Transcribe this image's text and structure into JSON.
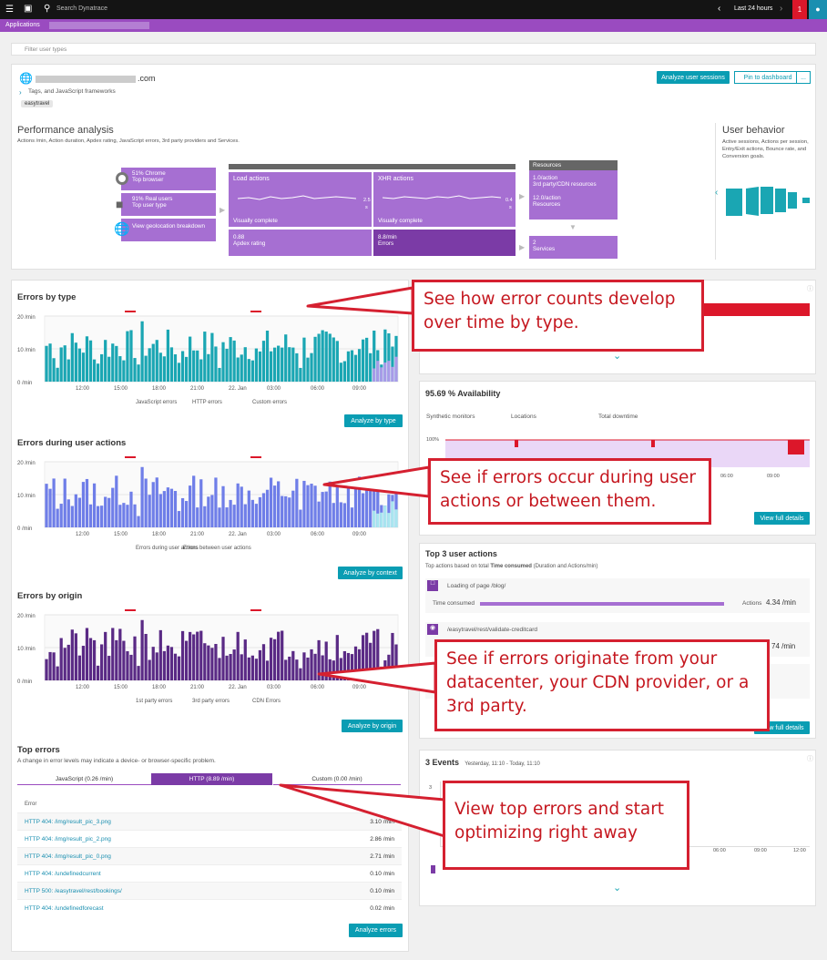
{
  "topbar": {
    "search_placeholder": "Search Dynatrace",
    "timeframe": "Last 24 hours",
    "alert_count": "1"
  },
  "nav": {
    "breadcrumb_root": "Applications"
  },
  "filter": {
    "placeholder": "Filter user types"
  },
  "app": {
    "name_suffix": ".com",
    "tags_label": "Tags, and JavaScript frameworks",
    "tag": "easytravel",
    "analyze_sessions": "Analyze user sessions",
    "pin": "Pin to dashboard",
    "more": "..."
  },
  "perf": {
    "title": "Performance analysis",
    "subtitle": "Actions /min, Action duration, Apdex rating, JavaScript errors, 3rd party providers and Services.",
    "browser_pct": "51% Chrome",
    "browser_label": "Top browser",
    "users_pct": "91% Real users",
    "users_label": "Top user type",
    "geo": "View geolocation breakdown",
    "load": "Load actions",
    "xhr": "XHR actions",
    "visually_complete": "Visually complete",
    "load_val": "2.5",
    "load_unit": "s",
    "xhr_val": "0.4",
    "xhr_unit": "s",
    "apdex_val": "0.88",
    "apdex_label": "Apdex rating",
    "errors_val": "8.8/min",
    "errors_label": "Errors",
    "resources_title": "Resources",
    "res1_val": "1.0/action",
    "res1_label": "3rd party/CDN resources",
    "res2_val": "12.0/action",
    "res2_label": "Resources",
    "services_val": "2",
    "services_label": "Services"
  },
  "behavior": {
    "title": "User behavior",
    "subtitle": "Active sessions, Actions per session, Entry/Exit actions, Bounce rate, and Conversion goals."
  },
  "errors_type": {
    "title": "Errors by type",
    "y": [
      "20 /min",
      "10 /min",
      "0 /min"
    ],
    "legend": [
      "JavaScript errors",
      "HTTP errors",
      "Custom errors"
    ],
    "button": "Analyze by type"
  },
  "errors_user": {
    "title": "Errors during user actions",
    "y": [
      "20 /min",
      "10 /min",
      "0 /min"
    ],
    "legend": [
      "Errors during user actions",
      "Errors between user actions"
    ],
    "button": "Analyze by context"
  },
  "errors_origin": {
    "title": "Errors by origin",
    "y": [
      "20 /min",
      "10 /min",
      "0 /min"
    ],
    "legend": [
      "1st party errors",
      "3rd party errors",
      "CDN Errors"
    ],
    "button": "Analyze by origin"
  },
  "x_ticks": [
    "12:00",
    "15:00",
    "18:00",
    "21:00",
    "22. Jan",
    "03:00",
    "06:00",
    "09:00"
  ],
  "top_errors": {
    "title": "Top errors",
    "subtitle": "A change in error levels may indicate a device- or browser-specific problem.",
    "tabs": [
      "JavaScript (0.26 /min)",
      "HTTP (8.89 /min)",
      "Custom (0.00 /min)"
    ],
    "col": "Error",
    "rows": [
      {
        "name": "HTTP 404: /img/result_pic_3.png",
        "rate": "3.10 /min"
      },
      {
        "name": "HTTP 404: /img/result_pic_2.png",
        "rate": "2.86 /min"
      },
      {
        "name": "HTTP 404: /img/result_pic_0.png",
        "rate": "2.71 /min"
      },
      {
        "name": "HTTP 404: /undefinedcurrent",
        "rate": "0.10 /min"
      },
      {
        "name": "HTTP 500: /easytravel/rest/bookings/",
        "rate": "0.10 /min"
      },
      {
        "name": "HTTP 404: /undefinedforecast",
        "rate": "0.02 /min"
      }
    ],
    "button": "Analyze errors"
  },
  "availability": {
    "title": "95.69 % Availability",
    "synthetic": "Synthetic monitors",
    "locations": "Locations",
    "downtime": "Total downtime",
    "y100": "100%",
    "ticks": [
      "06:00",
      "09:00"
    ],
    "button": "View full details"
  },
  "top_actions": {
    "title": "Top 3 user actions",
    "subtitle_pre": "Top actions based on total ",
    "subtitle_bold": "Time consumed",
    "subtitle_post": " (Duration and Actions/min)",
    "a1": "Loading of page /blog/",
    "tc": "Time consumed",
    "actions_label": "Actions",
    "a1_rate": "4.34 /min",
    "a2": "/easytravel/rest/validate-creditcard",
    "a2_rate": "74 /min",
    "button": "View full details"
  },
  "events": {
    "title": "3 Events",
    "range": "Yesterday, 11:10 - Today, 11:10",
    "y": [
      "3",
      "2",
      "1"
    ],
    "ticks": [
      "06:00",
      "09:00",
      "12:00"
    ]
  },
  "callouts": {
    "c1": "See how error counts develop over time by type.",
    "c2": "See if errors occur during user actions or between them.",
    "c3": "See if errors originate from your datacenter, your CDN provider, or a 3rd party.",
    "c4": "View top errors and start optimizing right away"
  },
  "colors": {
    "accent": "#9a4bc0",
    "teal": "#1aa6b3",
    "button": "#0a9db3",
    "callout": "#d52030",
    "origin": "#5a2a85",
    "useractions": "#6f7ee8"
  }
}
